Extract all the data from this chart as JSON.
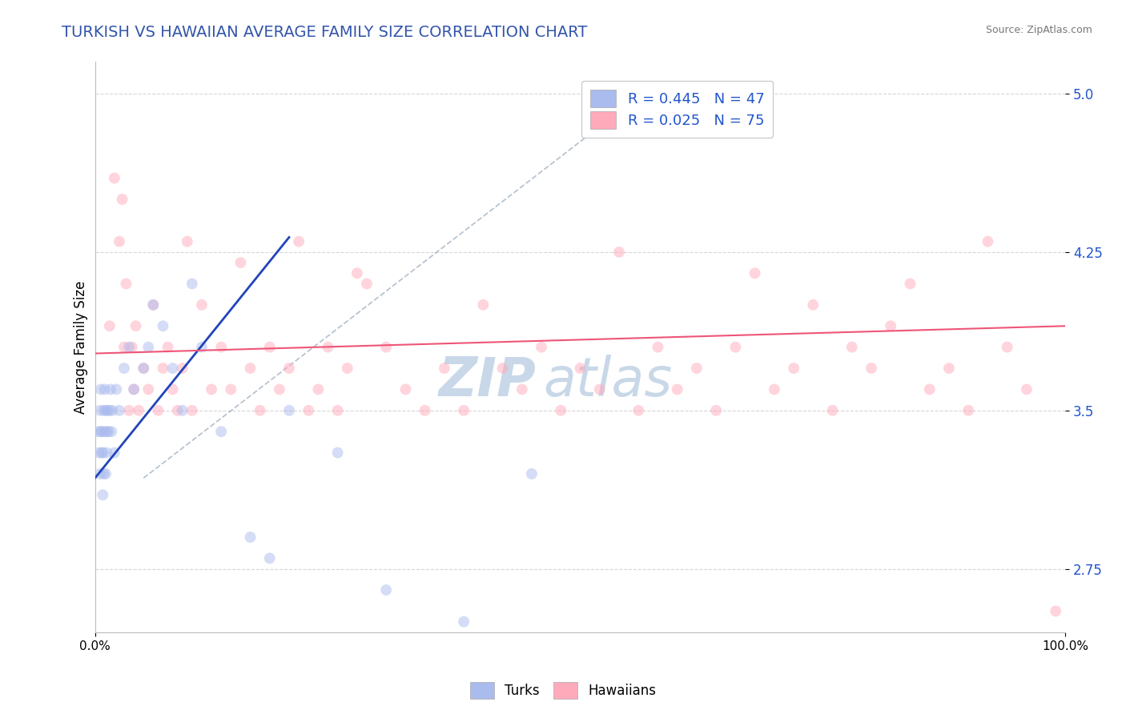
{
  "title": "TURKISH VS HAWAIIAN AVERAGE FAMILY SIZE CORRELATION CHART",
  "source": "Source: ZipAtlas.com",
  "xlabel": "",
  "ylabel": "Average Family Size",
  "xlim": [
    0,
    100
  ],
  "ylim": [
    2.45,
    5.15
  ],
  "yticks": [
    2.75,
    3.5,
    4.25,
    5.0
  ],
  "xtick_labels": [
    "0.0%",
    "100.0%"
  ],
  "title_color": "#3355aa",
  "source_color": "#777777",
  "background_color": "#ffffff",
  "turks_color": "#aabbee",
  "hawaiians_color": "#ffaabb",
  "turks_line_color": "#2244bb",
  "hawaiians_line_color": "#ee5577",
  "ref_line_color": "#99aabb",
  "legend_r_color": "#2255cc",
  "turks_R": 0.445,
  "turks_N": 47,
  "hawaiians_R": 0.025,
  "hawaiians_N": 75,
  "turks_x": [
    0.3,
    0.4,
    0.5,
    0.5,
    0.6,
    0.6,
    0.7,
    0.7,
    0.8,
    0.8,
    0.9,
    0.9,
    1.0,
    1.0,
    1.1,
    1.1,
    1.2,
    1.2,
    1.3,
    1.4,
    1.5,
    1.6,
    1.7,
    1.8,
    2.0,
    2.2,
    2.5,
    3.0,
    3.5,
    4.0,
    5.0,
    5.5,
    6.0,
    7.0,
    8.0,
    9.0,
    10.0,
    11.0,
    13.0,
    16.0,
    18.0,
    20.0,
    25.0,
    30.0,
    38.0,
    45.0,
    55.0
  ],
  "turks_y": [
    3.4,
    3.3,
    3.2,
    3.5,
    3.6,
    3.4,
    3.3,
    3.4,
    3.1,
    3.3,
    3.2,
    3.5,
    3.4,
    3.6,
    3.2,
    3.5,
    3.3,
    3.4,
    3.5,
    3.4,
    3.5,
    3.6,
    3.4,
    3.5,
    3.3,
    3.6,
    3.5,
    3.7,
    3.8,
    3.6,
    3.7,
    3.8,
    4.0,
    3.9,
    3.7,
    3.5,
    4.1,
    3.8,
    3.4,
    2.9,
    2.8,
    3.5,
    3.3,
    2.65,
    2.5,
    3.2,
    5.0
  ],
  "hawaiians_x": [
    1.5,
    2.0,
    2.5,
    2.8,
    3.0,
    3.2,
    3.5,
    3.8,
    4.0,
    4.2,
    4.5,
    5.0,
    5.5,
    6.0,
    6.5,
    7.0,
    7.5,
    8.0,
    8.5,
    9.0,
    9.5,
    10.0,
    11.0,
    12.0,
    13.0,
    14.0,
    15.0,
    16.0,
    17.0,
    18.0,
    19.0,
    20.0,
    21.0,
    22.0,
    23.0,
    24.0,
    25.0,
    26.0,
    27.0,
    28.0,
    30.0,
    32.0,
    34.0,
    36.0,
    38.0,
    40.0,
    42.0,
    44.0,
    46.0,
    48.0,
    50.0,
    52.0,
    54.0,
    56.0,
    58.0,
    60.0,
    62.0,
    64.0,
    66.0,
    68.0,
    70.0,
    72.0,
    74.0,
    76.0,
    78.0,
    80.0,
    82.0,
    84.0,
    86.0,
    88.0,
    90.0,
    92.0,
    94.0,
    96.0,
    99.0
  ],
  "hawaiians_y": [
    3.9,
    4.6,
    4.3,
    4.5,
    3.8,
    4.1,
    3.5,
    3.8,
    3.6,
    3.9,
    3.5,
    3.7,
    3.6,
    4.0,
    3.5,
    3.7,
    3.8,
    3.6,
    3.5,
    3.7,
    4.3,
    3.5,
    4.0,
    3.6,
    3.8,
    3.6,
    4.2,
    3.7,
    3.5,
    3.8,
    3.6,
    3.7,
    4.3,
    3.5,
    3.6,
    3.8,
    3.5,
    3.7,
    4.15,
    4.1,
    3.8,
    3.6,
    3.5,
    3.7,
    3.5,
    4.0,
    3.7,
    3.6,
    3.8,
    3.5,
    3.7,
    3.6,
    4.25,
    3.5,
    3.8,
    3.6,
    3.7,
    3.5,
    3.8,
    4.15,
    3.6,
    3.7,
    4.0,
    3.5,
    3.8,
    3.7,
    3.9,
    4.1,
    3.6,
    3.7,
    3.5,
    4.3,
    3.8,
    3.6,
    2.55
  ],
  "watermark_top": "ZIP",
  "watermark_bottom": "atlas",
  "watermark_color": "#c8d8e8",
  "marker_size": 100,
  "marker_alpha": 0.5,
  "turks_line_x0": 0.0,
  "turks_line_x1": 20.0,
  "turks_line_y0": 3.18,
  "turks_line_y1": 4.32,
  "hawaiians_line_x0": 0.0,
  "hawaiians_line_x1": 100.0,
  "hawaiians_line_y0": 3.77,
  "hawaiians_line_y1": 3.9,
  "ref_line_x0": 5.0,
  "ref_line_x1": 55.0,
  "ref_line_y0": 3.18,
  "ref_line_y1": 4.95,
  "grid_color": "#cccccc",
  "ylabel_fontsize": 12,
  "title_fontsize": 14,
  "ytick_color": "#2255cc",
  "ytick_fontsize": 12,
  "legend_fontsize": 13
}
